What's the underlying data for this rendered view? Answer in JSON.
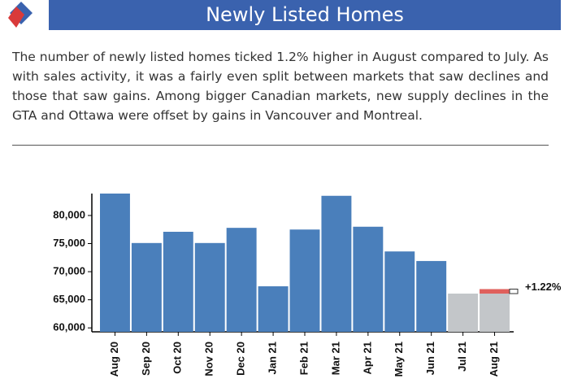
{
  "chart_data": {
    "type": "bar",
    "title": "Newly Listed Homes",
    "categories": [
      "Aug 20",
      "Sep 20",
      "Oct 20",
      "Nov 20",
      "Dec 20",
      "Jan 21",
      "Feb 21",
      "Mar 21",
      "Apr 21",
      "May 21",
      "Jun 21",
      "Jul 21",
      "Aug 21"
    ],
    "values": [
      83900,
      75100,
      77100,
      75100,
      77800,
      67400,
      77500,
      83500,
      78000,
      73600,
      71900,
      66100,
      66900
    ],
    "colors": [
      "#4a7fbb",
      "#4a7fbb",
      "#4a7fbb",
      "#4a7fbb",
      "#4a7fbb",
      "#4a7fbb",
      "#4a7fbb",
      "#4a7fbb",
      "#4a7fbb",
      "#4a7fbb",
      "#4a7fbb",
      "#c3c6c9",
      "#c3c6c9"
    ],
    "change_color": "#e0605c",
    "annotation": "+1.22%",
    "ylim": [
      59300,
      83900
    ],
    "yticks": [
      {
        "value": 60000,
        "label": "60,000"
      },
      {
        "value": 65000,
        "label": "65,000"
      },
      {
        "value": 70000,
        "label": "70,000"
      },
      {
        "value": 75000,
        "label": "75,000"
      },
      {
        "value": 80000,
        "label": "80,000"
      }
    ],
    "grid": false
  },
  "text": "The number of newly listed homes ticked 1.2% higher in August compared to July. As with sales activity, it was a fairly even split between markets that saw declines and those that saw gains. Among bigger Canadian markets, new supply declines in the GTA and Ottawa were offset by gains in Vancouver and Montreal."
}
